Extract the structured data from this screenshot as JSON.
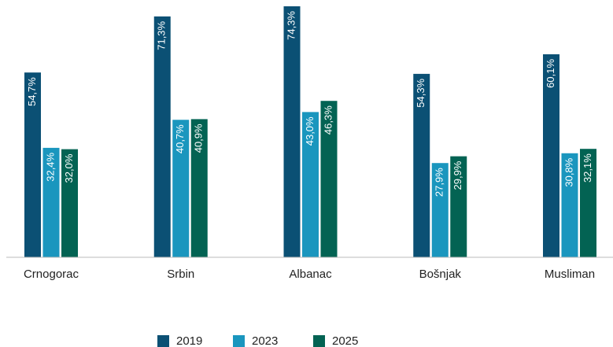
{
  "chart_data": {
    "type": "bar",
    "categories": [
      "Crnogorac",
      "Srbin",
      "Albanac",
      "Bošnjak",
      "Musliman"
    ],
    "series": [
      {
        "name": "2019",
        "color": "#0b5074",
        "values": [
          54.7,
          71.3,
          74.3,
          54.3,
          60.1
        ],
        "value_labels": [
          "54,7%",
          "71,3%",
          "74,3%",
          "54,3%",
          "60,1%"
        ]
      },
      {
        "name": "2023",
        "color": "#1a96be",
        "values": [
          32.4,
          40.7,
          43.0,
          27.9,
          30.8
        ],
        "value_labels": [
          "32,4%",
          "40,7%",
          "43,0%",
          "27,9%",
          "30,8%"
        ]
      },
      {
        "name": "2025",
        "color": "#036353",
        "values": [
          32.0,
          40.9,
          46.3,
          29.9,
          32.1
        ],
        "value_labels": [
          "32,0%",
          "40,9%",
          "46,3%",
          "29,9%",
          "32,1%"
        ]
      }
    ],
    "ylim": [
      0,
      75
    ]
  }
}
